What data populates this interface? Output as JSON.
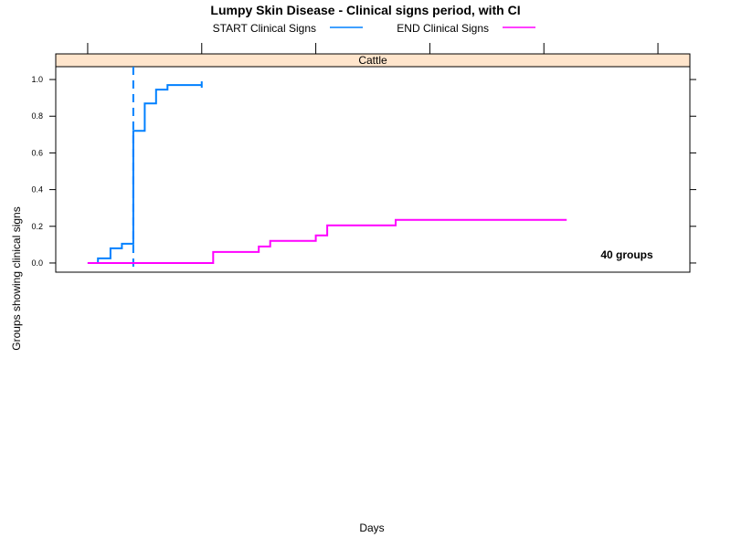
{
  "chart_data": {
    "type": "line",
    "title": "Lumpy Skin Disease - Clinical signs period, with CI",
    "xlabel": "Days",
    "ylabel": "Groups showing clinical signs",
    "panel_label": "Cattle",
    "annotation": "40 groups",
    "ylim": [
      -0.05,
      1.07
    ],
    "yticks": [
      "0.0",
      "0.2",
      "0.4",
      "0.6",
      "0.8",
      "1.0"
    ],
    "ytick_values": [
      0.0,
      0.2,
      0.4,
      0.6,
      0.8,
      1.0
    ],
    "xlim": [
      -1.4,
      26.4
    ],
    "x_axis_ticks": [
      0,
      5,
      10,
      15,
      20,
      25
    ],
    "legend_position": "top",
    "grid": false,
    "reference_line_x": 2,
    "series": [
      {
        "name": "START Clinical Signs",
        "color": "#0080ff",
        "x": [
          0,
          0.45,
          0.45,
          1,
          1,
          1.5,
          1.5,
          2,
          2,
          2.5,
          2.5,
          3,
          3,
          3.5,
          3.5,
          5
        ],
        "y": [
          0.0,
          0.0,
          0.025,
          0.025,
          0.08,
          0.08,
          0.105,
          0.105,
          0.72,
          0.72,
          0.87,
          0.87,
          0.945,
          0.945,
          0.97,
          0.97
        ],
        "end_tick_x": 5,
        "end_tick_y": [
          0.955,
          0.99
        ]
      },
      {
        "name": "END Clinical Signs",
        "color": "#ff00ff",
        "x": [
          0,
          5.5,
          5.5,
          7.5,
          7.5,
          8,
          8,
          10,
          10,
          10.5,
          10.5,
          13.5,
          13.5,
          21
        ],
        "y": [
          0.0,
          0.0,
          0.06,
          0.06,
          0.09,
          0.09,
          0.12,
          0.12,
          0.15,
          0.15,
          0.205,
          0.205,
          0.235,
          0.235
        ]
      }
    ]
  }
}
